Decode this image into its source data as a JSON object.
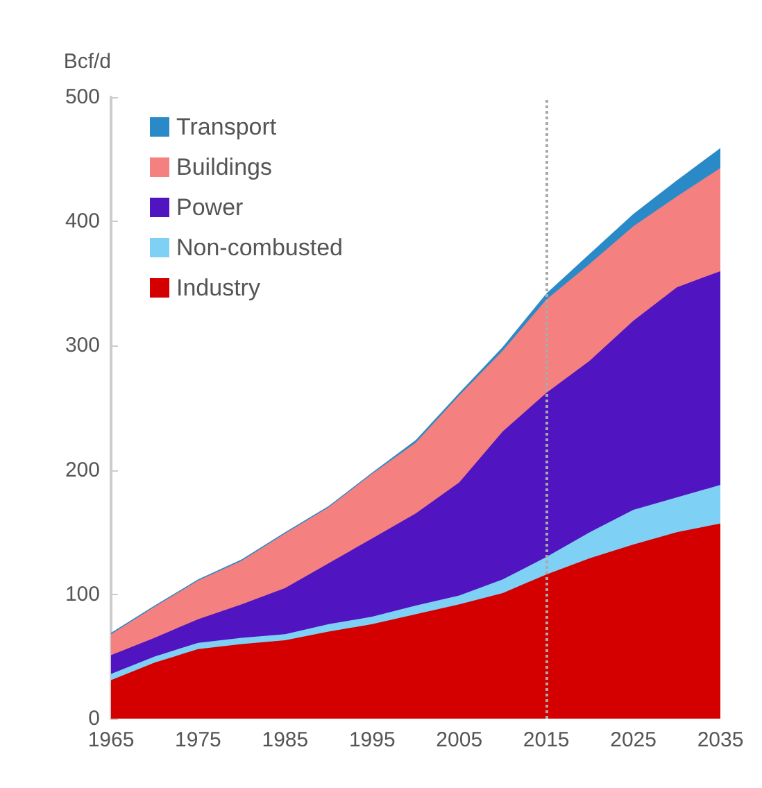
{
  "chart_data": {
    "type": "area",
    "stacked": true,
    "ylabel": "Bcf/d",
    "x": [
      1965,
      1970,
      1975,
      1980,
      1985,
      1990,
      1995,
      2000,
      2005,
      2010,
      2015,
      2020,
      2025,
      2030,
      2035
    ],
    "series": [
      {
        "name": "Industry",
        "color": "#d40000",
        "values": [
          31,
          45,
          56,
          60,
          63,
          70,
          76,
          84,
          92,
          101,
          116,
          129,
          140,
          150,
          157
        ]
      },
      {
        "name": "Non-combusted",
        "color": "#7fd0f5",
        "values": [
          5,
          5,
          5,
          5,
          5,
          6,
          6,
          7,
          7,
          11,
          14,
          21,
          28,
          28,
          31
        ]
      },
      {
        "name": "Power",
        "color": "#5014c0",
        "values": [
          15,
          15,
          19,
          27,
          37,
          49,
          63,
          74,
          91,
          119,
          132,
          138,
          152,
          169,
          172
        ]
      },
      {
        "name": "Buildings",
        "color": "#f48080",
        "values": [
          17,
          25,
          31,
          35,
          44,
          45,
          52,
          57,
          70,
          65,
          75,
          78,
          76,
          73,
          83
        ]
      },
      {
        "name": "Transport",
        "color": "#2a8ac8",
        "values": [
          1,
          1,
          1,
          1,
          1,
          1,
          1,
          2,
          2,
          3,
          5,
          8,
          10,
          13,
          16
        ]
      }
    ],
    "xlim": [
      1965,
      2035
    ],
    "xticks": [
      1965,
      1975,
      1985,
      1995,
      2005,
      2015,
      2025,
      2035
    ],
    "ylim": [
      0,
      500
    ],
    "yticks": [
      0,
      100,
      200,
      300,
      400,
      500
    ],
    "ref_lines": [
      {
        "axis": "x",
        "value": 2015,
        "color": "#aaaaaa",
        "line_style": "dotted"
      }
    ],
    "legend": "top left",
    "grid": false
  }
}
